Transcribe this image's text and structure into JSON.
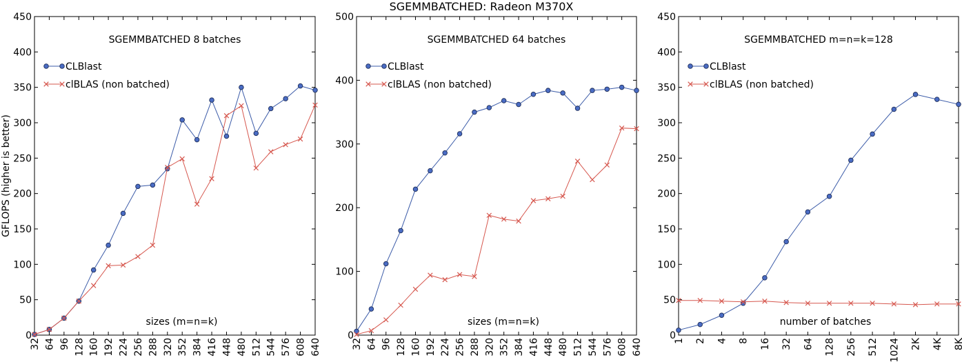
{
  "figure": {
    "suptitle": "SGEMMBATCHED: Radeon M370X",
    "colors": {
      "clblast": "#3b5ba8",
      "clblast_fill": "#4a6cc4",
      "clblas": "#d6574e"
    }
  },
  "chart_data": [
    {
      "type": "line",
      "title": "SGEMMBATCHED 8 batches",
      "xlabel": "sizes (m=n=k)",
      "ylabel": "GFLOPS (higher is better)",
      "ylim": [
        0,
        450
      ],
      "yticks": [
        "0",
        "50",
        "100",
        "150",
        "200",
        "250",
        "300",
        "350",
        "400",
        "450"
      ],
      "categories": [
        "32",
        "64",
        "96",
        "128",
        "160",
        "192",
        "224",
        "256",
        "288",
        "320",
        "352",
        "384",
        "416",
        "448",
        "480",
        "512",
        "544",
        "576",
        "608",
        "640"
      ],
      "legend_position": "upper-left",
      "series": [
        {
          "name": "CLBlast",
          "marker": "circle",
          "values": [
            1,
            8,
            24,
            48,
            92,
            127,
            172,
            210,
            212,
            235,
            304,
            276,
            332,
            281,
            350,
            285,
            320,
            334,
            352,
            346
          ]
        },
        {
          "name": "clBLAS (non batched)",
          "marker": "x",
          "values": [
            1,
            8,
            24,
            48,
            70,
            98,
            99,
            111,
            127,
            237,
            249,
            185,
            221,
            310,
            324,
            236,
            259,
            269,
            277,
            325
          ]
        }
      ]
    },
    {
      "type": "line",
      "title": "SGEMMBATCHED 64 batches",
      "xlabel": "sizes (m=n=k)",
      "ylabel": "",
      "ylim": [
        0,
        500
      ],
      "yticks": [
        "0",
        "100",
        "200",
        "300",
        "400",
        "500"
      ],
      "categories": [
        "32",
        "64",
        "96",
        "128",
        "160",
        "192",
        "224",
        "256",
        "288",
        "320",
        "352",
        "384",
        "416",
        "448",
        "480",
        "512",
        "544",
        "576",
        "608",
        "640"
      ],
      "legend_position": "upper-left",
      "series": [
        {
          "name": "CLBlast",
          "marker": "circle",
          "values": [
            6,
            41,
            112,
            164,
            229,
            258,
            286,
            316,
            350,
            357,
            368,
            362,
            378,
            384,
            380,
            356,
            384,
            386,
            389,
            384
          ]
        },
        {
          "name": "clBLAS (non batched)",
          "marker": "x",
          "values": [
            1,
            7,
            24,
            47,
            72,
            94,
            87,
            95,
            92,
            188,
            182,
            179,
            211,
            214,
            218,
            273,
            244,
            267,
            325,
            324
          ]
        }
      ]
    },
    {
      "type": "line",
      "title": "SGEMMBATCHED m=n=k=128",
      "xlabel": "number of batches",
      "ylabel": "",
      "ylim": [
        0,
        450
      ],
      "yticks": [
        "0",
        "50",
        "100",
        "150",
        "200",
        "250",
        "300",
        "350",
        "400",
        "450"
      ],
      "categories": [
        "1",
        "2",
        "4",
        "8",
        "16",
        "32",
        "64",
        "128",
        "256",
        "512",
        "1024",
        "2K",
        "4K",
        "8K"
      ],
      "legend_position": "upper-left",
      "series": [
        {
          "name": "CLBlast",
          "marker": "circle",
          "values": [
            7,
            15,
            28,
            45,
            81,
            132,
            174,
            196,
            247,
            284,
            319,
            340,
            333,
            326
          ]
        },
        {
          "name": "clBLAS (non batched)",
          "marker": "x",
          "values": [
            49,
            49,
            48,
            47,
            48,
            46,
            45,
            45,
            45,
            45,
            44,
            43,
            44,
            44
          ]
        }
      ]
    }
  ]
}
